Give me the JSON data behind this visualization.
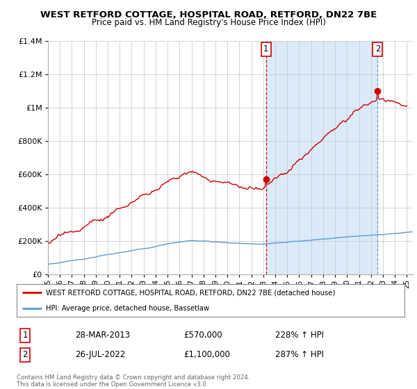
{
  "title": "WEST RETFORD COTTAGE, HOSPITAL ROAD, RETFORD, DN22 7BE",
  "subtitle": "Price paid vs. HM Land Registry's House Price Index (HPI)",
  "legend_line1": "WEST RETFORD COTTAGE, HOSPITAL ROAD, RETFORD, DN22 7BE (detached house)",
  "legend_line2": "HPI: Average price, detached house, Bassetlaw",
  "annotation1_label": "1",
  "annotation1_date": "28-MAR-2013",
  "annotation1_price": "£570,000",
  "annotation1_hpi": "228% ↑ HPI",
  "annotation2_label": "2",
  "annotation2_date": "26-JUL-2022",
  "annotation2_price": "£1,100,000",
  "annotation2_hpi": "287% ↑ HPI",
  "footer": "Contains HM Land Registry data © Crown copyright and database right 2024.\nThis data is licensed under the Open Government Licence v3.0.",
  "hpi_color": "#5b9bd5",
  "price_color": "#cc0000",
  "dashed_red_color": "#cc0000",
  "dashed_blue_color": "#5b9bd5",
  "fill_color": "#daeaf8",
  "background_color": "#ffffff",
  "grid_color": "#cccccc",
  "ylim": [
    0,
    1400000
  ],
  "yticks": [
    0,
    200000,
    400000,
    600000,
    800000,
    1000000,
    1200000,
    1400000
  ],
  "sale1_x": 2013.22,
  "sale1_y": 570000,
  "sale2_x": 2022.56,
  "sale2_y": 1100000,
  "xlim_start": 1995.0,
  "xlim_end": 2025.5
}
